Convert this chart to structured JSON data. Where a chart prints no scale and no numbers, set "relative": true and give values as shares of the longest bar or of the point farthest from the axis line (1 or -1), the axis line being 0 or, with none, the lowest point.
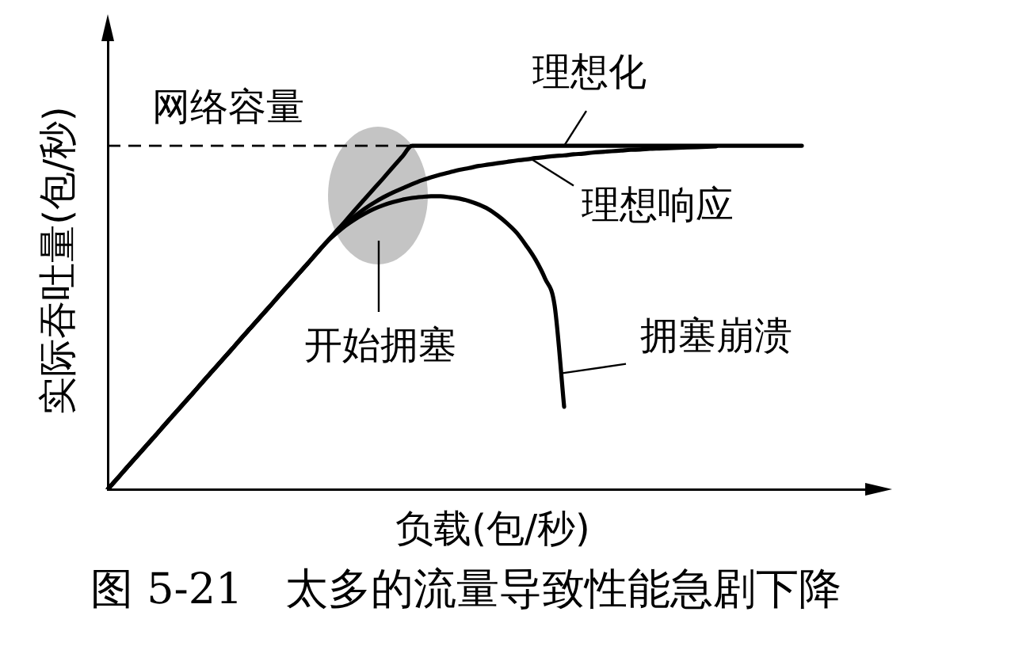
{
  "chart_data": {
    "type": "line",
    "relative": true,
    "xlabel": "负载(包/秒)",
    "ylabel": "实际吞吐量(包/秒)",
    "categories": [
      null,
      null,
      null,
      null,
      null,
      null,
      null,
      null,
      null,
      null,
      null,
      null,
      null,
      null,
      null,
      null,
      null,
      null,
      null,
      null,
      null,
      null,
      null,
      null,
      null,
      null,
      null,
      null,
      null,
      null,
      null,
      null,
      null,
      null,
      null,
      null,
      null,
      null,
      null,
      null,
      null,
      null,
      null,
      null,
      null,
      null,
      null,
      null,
      null,
      null,
      null,
      null,
      null,
      null,
      null,
      null,
      null,
      null,
      null,
      null,
      null,
      null,
      null,
      null,
      null,
      null,
      null,
      null,
      null,
      null,
      null,
      null,
      null,
      null,
      null,
      null,
      null,
      null,
      null,
      null,
      null,
      null
    ],
    "series": [
      {
        "name": "理想化",
        "color": "#000000",
        "values": [
          0,
          0.031,
          0.063,
          0.094,
          0.125,
          0.156,
          0.188,
          0.219,
          0.25,
          0.281,
          0.313,
          0.344,
          0.375,
          0.406,
          0.438,
          0.469,
          0.5,
          0.531,
          0.563,
          0.594,
          0.625,
          0.656,
          0.688,
          0.719,
          0.75,
          0.781,
          0.813,
          0.844,
          0.875,
          0.906,
          0.938,
          0.969,
          1,
          1,
          1,
          1,
          1,
          1,
          1,
          1,
          1,
          1,
          1,
          1,
          1,
          1,
          1,
          1,
          1,
          1,
          1,
          1,
          1,
          1,
          1,
          1,
          1,
          1,
          1,
          1,
          1,
          1,
          1,
          1,
          1,
          1,
          1,
          1,
          1,
          1,
          1,
          1,
          1,
          1,
          null,
          null,
          null,
          null,
          null,
          null,
          null,
          null
        ]
      },
      {
        "name": "理想响应",
        "color": "#000000",
        "values": [
          0,
          0.031,
          0.063,
          0.094,
          0.125,
          0.156,
          0.188,
          0.219,
          0.25,
          0.281,
          0.313,
          0.344,
          0.375,
          0.406,
          0.438,
          0.469,
          0.5,
          0.531,
          0.563,
          0.594,
          0.625,
          0.656,
          0.688,
          0.719,
          0.747,
          0.772,
          0.795,
          0.816,
          0.834,
          0.85,
          0.864,
          0.876,
          0.888,
          0.899,
          0.908,
          0.916,
          0.923,
          0.93,
          0.935,
          0.941,
          0.945,
          0.949,
          0.953,
          0.957,
          0.96,
          0.964,
          0.967,
          0.97,
          0.972,
          0.975,
          0.977,
          0.98,
          0.982,
          0.984,
          0.986,
          0.988,
          0.989,
          0.991,
          0.992,
          0.993,
          0.994,
          0.995,
          0.996,
          0.997,
          0.998,
          null,
          null,
          null,
          null,
          null,
          null,
          null,
          null,
          null,
          null,
          null,
          null,
          null,
          null,
          null,
          null,
          null
        ]
      },
      {
        "name": "拥塞崩溃",
        "color": "#000000",
        "values": [
          0,
          0.031,
          0.063,
          0.094,
          0.125,
          0.156,
          0.188,
          0.219,
          0.25,
          0.281,
          0.313,
          0.344,
          0.375,
          0.406,
          0.438,
          0.469,
          0.5,
          0.531,
          0.563,
          0.594,
          0.625,
          0.656,
          0.688,
          0.719,
          0.744,
          0.767,
          0.786,
          0.802,
          0.816,
          0.827,
          0.836,
          0.843,
          0.848,
          0.851,
          0.853,
          0.853,
          0.85,
          0.846,
          0.839,
          0.829,
          0.816,
          0.797,
          0.774,
          0.747,
          0.71,
          0.668,
          0.613,
          0.535,
          0.24,
          null,
          null,
          null,
          null,
          null,
          null,
          null,
          null,
          null,
          null,
          null,
          null,
          null,
          null,
          null,
          null,
          null,
          null,
          null,
          null,
          null,
          null,
          null,
          null,
          null,
          null,
          null,
          null,
          null,
          null,
          null,
          null,
          null
        ]
      }
    ],
    "ref_lines": [
      {
        "axis": "y",
        "value": 1,
        "label": "网络容量",
        "line_style": "dashed"
      }
    ],
    "annotations": [
      "开始拥塞",
      "图 5-21　太多的流量导致性能急剧下降"
    ],
    "marker": "none",
    "line_style": "solid"
  }
}
